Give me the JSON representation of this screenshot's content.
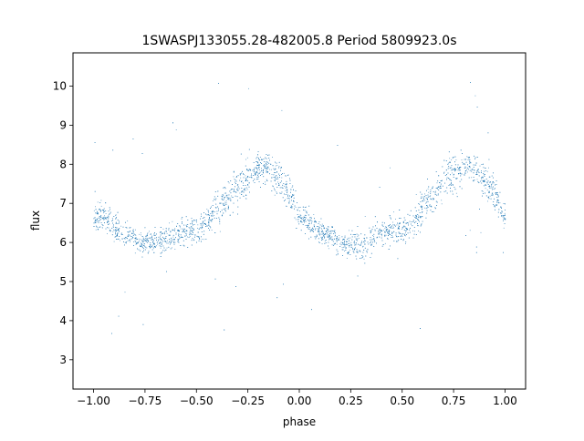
{
  "chart_data": {
    "type": "scatter",
    "title": "1SWASPJ133055.28-482005.8 Period 5809923.0s",
    "xlabel": "phase",
    "ylabel": "flux",
    "xlim": [
      -1.1,
      1.1
    ],
    "ylim": [
      2.25,
      10.85
    ],
    "xticks": [
      -1.0,
      -0.75,
      -0.5,
      -0.25,
      0.0,
      0.25,
      0.5,
      0.75,
      1.0
    ],
    "xtick_labels": [
      "−1.00",
      "−0.75",
      "−0.50",
      "−0.25",
      "0.00",
      "0.25",
      "0.50",
      "0.75",
      "1.00"
    ],
    "yticks": [
      3,
      4,
      5,
      6,
      7,
      8,
      9,
      10
    ],
    "ytick_labels": [
      "3",
      "4",
      "5",
      "6",
      "7",
      "8",
      "9",
      "10"
    ],
    "grid": false,
    "legend": "none",
    "point_color": "#1f77b4",
    "series": [
      {
        "phase": [
          -1.0,
          -0.95,
          -0.9,
          -0.85,
          -0.8,
          -0.75,
          -0.7,
          -0.65,
          -0.6,
          -0.55,
          -0.5,
          -0.45,
          -0.4,
          -0.35,
          -0.3,
          -0.25,
          -0.2,
          -0.15,
          -0.1,
          -0.05,
          0.0,
          0.05,
          0.1,
          0.15,
          0.2,
          0.25,
          0.3,
          0.35,
          0.4,
          0.45,
          0.5,
          0.55,
          0.6,
          0.65,
          0.7,
          0.75,
          0.8,
          0.85,
          0.9,
          0.95,
          1.0
        ],
        "flux": [
          6.6,
          6.7,
          6.4,
          6.2,
          6.1,
          6.0,
          6.0,
          6.1,
          6.2,
          6.3,
          6.3,
          6.5,
          6.9,
          7.1,
          7.4,
          7.7,
          8.0,
          7.9,
          7.6,
          7.3,
          6.6,
          6.5,
          6.3,
          6.2,
          6.0,
          6.0,
          5.9,
          6.1,
          6.3,
          6.3,
          6.3,
          6.5,
          6.9,
          7.2,
          7.6,
          7.7,
          8.0,
          7.9,
          7.6,
          7.3,
          6.6
        ],
        "scatter": [
          0.35,
          0.35,
          0.3,
          0.3,
          0.3,
          0.35,
          0.35,
          0.35,
          0.35,
          0.35,
          0.35,
          0.4,
          0.45,
          0.45,
          0.5,
          0.55,
          0.4,
          0.4,
          0.45,
          0.45,
          0.35,
          0.35,
          0.3,
          0.3,
          0.3,
          0.35,
          0.35,
          0.35,
          0.35,
          0.35,
          0.35,
          0.4,
          0.45,
          0.45,
          0.5,
          0.55,
          0.4,
          0.4,
          0.45,
          0.45,
          0.35
        ]
      }
    ]
  }
}
